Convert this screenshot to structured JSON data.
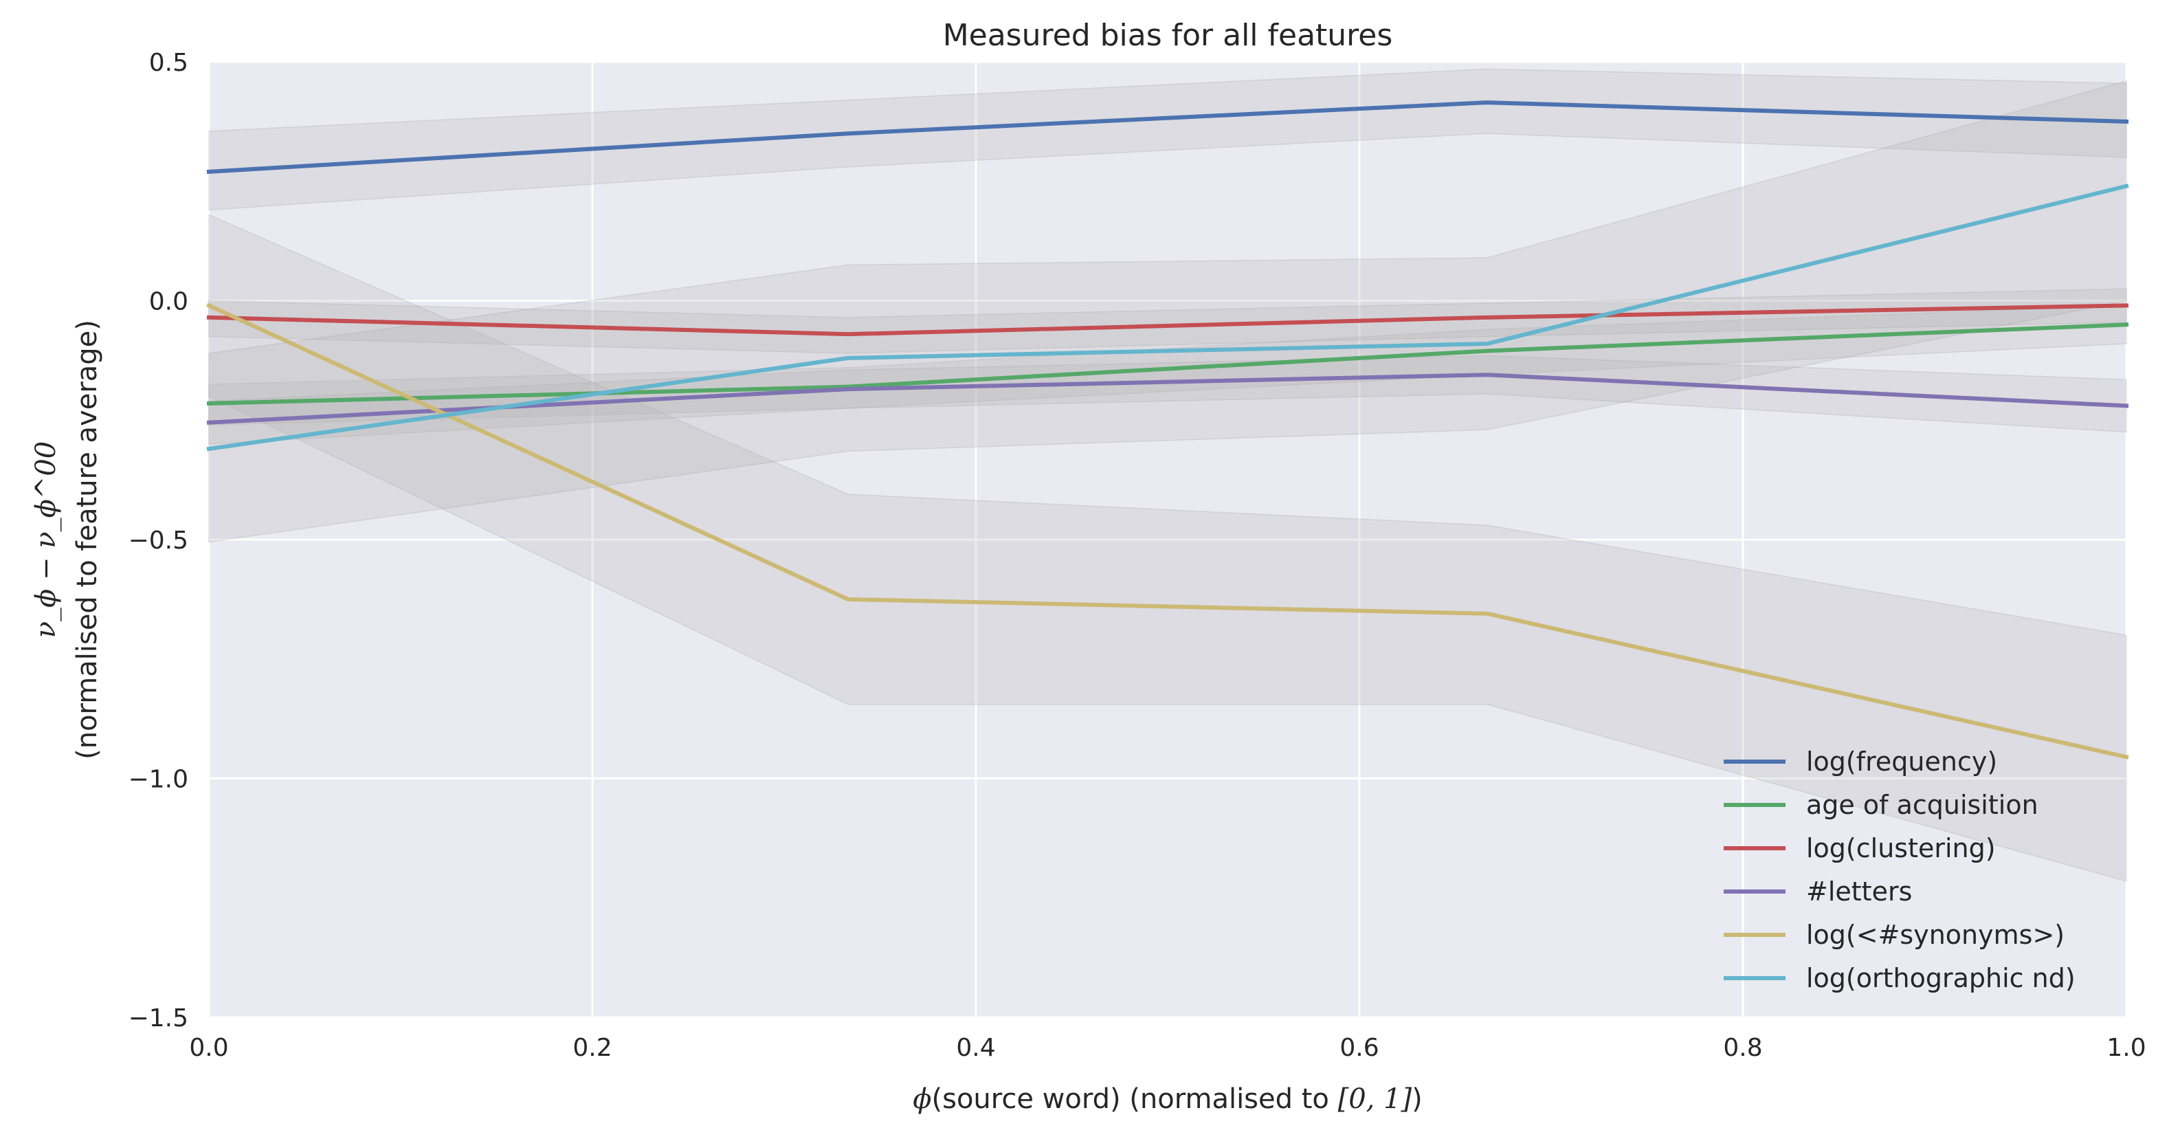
{
  "chart_data": {
    "type": "line",
    "title": "Measured bias for all features",
    "xlabel_parts": [
      "ϕ",
      "(source word",
      ")",
      " (normalised to ",
      "[0, 1]",
      ")"
    ],
    "ylabel_math": "ν_ϕ − ν_ϕ^00",
    "ylabel": "(normalised to feature average)",
    "xlim": [
      0.0,
      1.0
    ],
    "ylim": [
      -1.5,
      0.5
    ],
    "xticks": [
      0.0,
      0.2,
      0.4,
      0.6,
      0.8,
      1.0
    ],
    "xtick_labels": [
      "0.0",
      "0.2",
      "0.4",
      "0.6",
      "0.8",
      "1.0"
    ],
    "yticks": [
      0.5,
      0.0,
      -0.5,
      -1.0,
      -1.5
    ],
    "ytick_labels": [
      "0.5",
      "0.0",
      "−0.5",
      "−1.0",
      "−1.5"
    ],
    "grid": true,
    "legend_position": "lower-right",
    "x": [
      0.0,
      0.3333,
      0.6667,
      1.0
    ],
    "series": [
      {
        "name": "log(frequency)",
        "color": "#4c72b0",
        "values": [
          0.27,
          0.35,
          0.415,
          0.375
        ],
        "lower": [
          0.19,
          0.28,
          0.35,
          0.3
        ],
        "upper": [
          0.355,
          0.42,
          0.485,
          0.455
        ]
      },
      {
        "name": "age of acquisition",
        "color": "#55a868",
        "values": [
          -0.215,
          -0.18,
          -0.105,
          -0.05
        ],
        "lower": [
          -0.26,
          -0.225,
          -0.155,
          -0.09
        ],
        "upper": [
          -0.175,
          -0.14,
          -0.06,
          -0.01
        ]
      },
      {
        "name": "log(clustering)",
        "color": "#c44e52",
        "values": [
          -0.035,
          -0.07,
          -0.035,
          -0.01
        ],
        "lower": [
          -0.075,
          -0.11,
          -0.075,
          -0.045
        ],
        "upper": [
          0.0,
          -0.035,
          -0.005,
          0.025
        ]
      },
      {
        "name": "#letters",
        "color": "#8172b2",
        "values": [
          -0.255,
          -0.185,
          -0.155,
          -0.22
        ],
        "lower": [
          -0.3,
          -0.225,
          -0.195,
          -0.275
        ],
        "upper": [
          -0.21,
          -0.145,
          -0.115,
          -0.165
        ]
      },
      {
        "name": "log(<#synonyms>)",
        "color": "#ccb974",
        "values": [
          -0.01,
          -0.625,
          -0.655,
          -0.955
        ],
        "lower": [
          -0.2,
          -0.845,
          -0.845,
          -1.215
        ],
        "upper": [
          0.18,
          -0.405,
          -0.47,
          -0.7
        ]
      },
      {
        "name": "log(orthographic nd)",
        "color": "#64b5cd",
        "values": [
          -0.31,
          -0.12,
          -0.09,
          0.24
        ],
        "lower": [
          -0.505,
          -0.315,
          -0.27,
          0.0
        ],
        "upper": [
          -0.11,
          0.075,
          0.09,
          0.46
        ]
      }
    ]
  }
}
